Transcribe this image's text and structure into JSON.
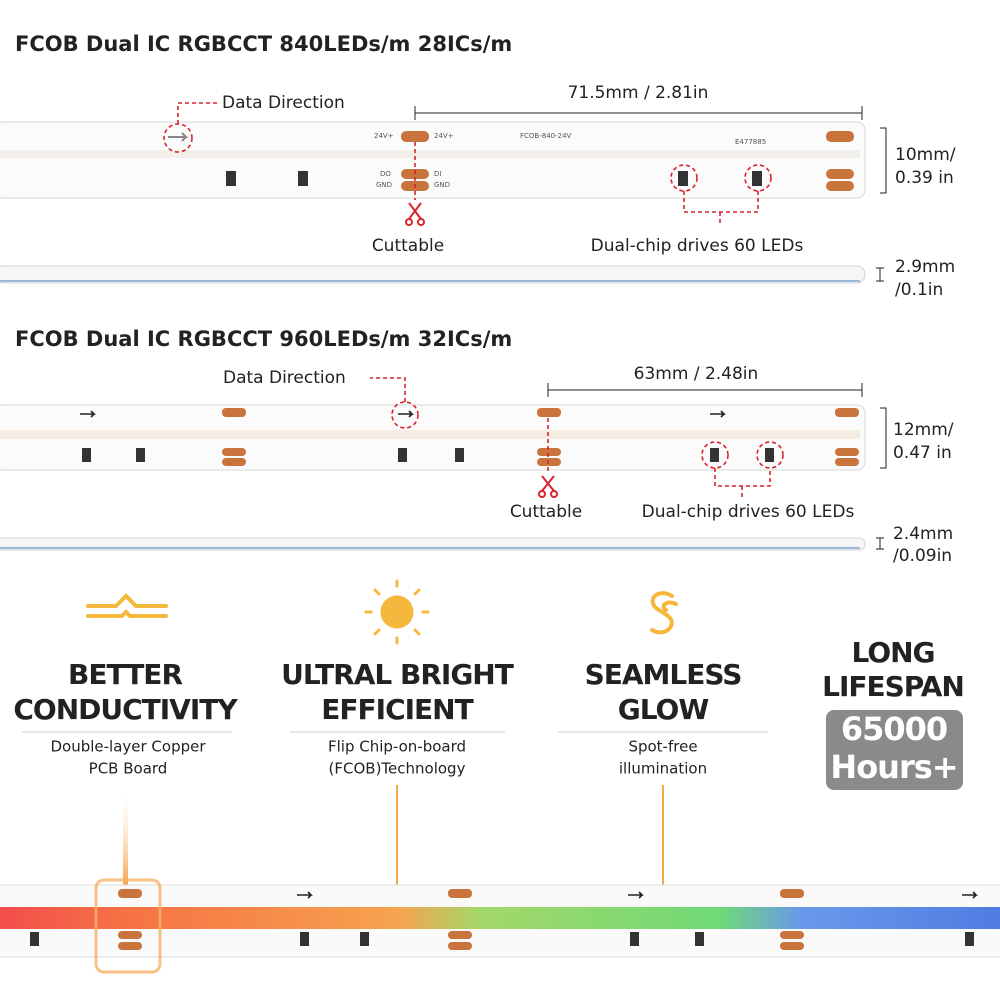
{
  "section1": {
    "title": "FCOB Dual IC RGBCCT 840LEDs/m 28ICs/m",
    "direction": "Data Direction",
    "length": "71.5mm / 2.81in",
    "width1": "10mm/",
    "width2": "0.39 in",
    "cut": "Cuttable",
    "chips": "Dual-chip drives 60 LEDs",
    "thick1": "2.9mm",
    "thick2": "/0.1in"
  },
  "section2": {
    "title": "FCOB Dual IC RGBCCT 960LEDs/m 32ICs/m",
    "direction": "Data Direction",
    "length": "63mm / 2.48in",
    "width1": "12mm/",
    "width2": "0.47 in",
    "cut": "Cuttable",
    "chips": "Dual-chip drives 60 LEDs",
    "thick1": "2.4mm",
    "thick2": "/0.09in"
  },
  "board_labels": {
    "v24": "24V+",
    "do": "DO",
    "di": "DI",
    "gnd": "GND",
    "model": "FCOB-840-24V",
    "cert": "E477885"
  },
  "features": [
    {
      "title": [
        "BETTER",
        "CONDUCTIVITY"
      ],
      "desc": [
        "Double-layer Copper",
        "PCB Board"
      ]
    },
    {
      "title": [
        "ULTRAL BRIGHT",
        "EFFICIENT"
      ],
      "desc": [
        "Flip Chip-on-board",
        "(FCOB)Technology"
      ]
    },
    {
      "title": [
        "SEAMLESS",
        "GLOW"
      ],
      "desc": [
        "Spot-free",
        "illumination"
      ]
    }
  ],
  "lifespan": {
    "title": [
      "LONG",
      "LIFESPAN"
    ],
    "value": "65000",
    "unit": "Hours+"
  }
}
